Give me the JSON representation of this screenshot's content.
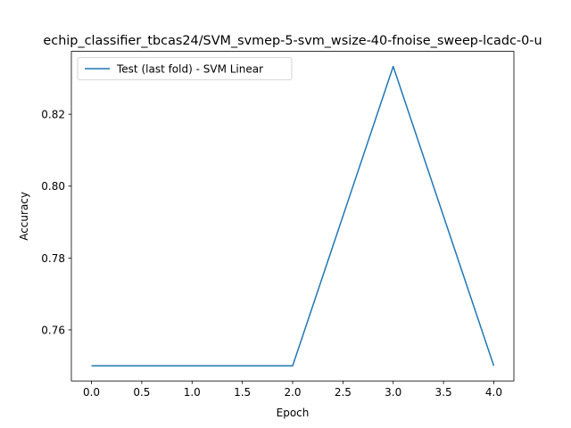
{
  "chart_data": {
    "type": "line",
    "title": "echip_classifier_tbcas24/SVM_svmep-5-svm_wsize-40-fnoise_sweep-lcadc-0-u",
    "xlabel": "Epoch",
    "ylabel": "Accuracy",
    "xlim": [
      -0.2,
      4.2
    ],
    "ylim": [
      0.7458,
      0.8375
    ],
    "x_ticks": [
      0.0,
      0.5,
      1.0,
      1.5,
      2.0,
      2.5,
      3.0,
      3.5,
      4.0
    ],
    "y_ticks": [
      0.76,
      0.78,
      0.8,
      0.82
    ],
    "x_tick_labels": [
      "0.0",
      "0.5",
      "1.0",
      "1.5",
      "2.0",
      "2.5",
      "3.0",
      "3.5",
      "4.0"
    ],
    "y_tick_labels": [
      "0.76",
      "0.78",
      "0.80",
      "0.82"
    ],
    "grid": false,
    "legend_position": "upper-left",
    "series": [
      {
        "name": "Test (last fold) - SVM Linear",
        "color": "#1f77b4",
        "x": [
          0,
          1,
          2,
          3,
          4
        ],
        "y": [
          0.75,
          0.75,
          0.75,
          0.8333,
          0.75
        ]
      }
    ]
  }
}
